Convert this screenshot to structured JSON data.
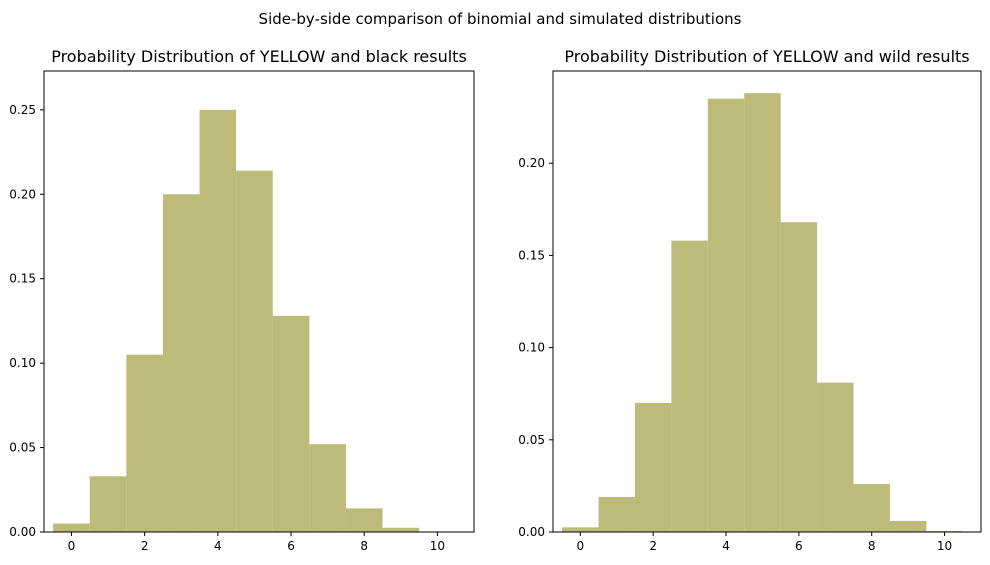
{
  "figure": {
    "suptitle": "Side-by-side comparison of binomial and simulated distributions"
  },
  "colors": {
    "bar": "#bcbb79",
    "axis": "#000000",
    "background": "#ffffff"
  },
  "chart_data": [
    {
      "type": "bar",
      "title": "Probability Distribution of YELLOW and black results",
      "xlabel": "",
      "ylabel": "",
      "xlim": [
        -0.75,
        11.0
      ],
      "ylim": [
        0,
        0.273
      ],
      "xticks": [
        0,
        2,
        4,
        6,
        8,
        10
      ],
      "yticks": [
        0.0,
        0.05,
        0.1,
        0.15,
        0.2,
        0.25
      ],
      "ytick_labels": [
        "0.00",
        "0.05",
        "0.10",
        "0.15",
        "0.20",
        "0.25"
      ],
      "categories": [
        0,
        1,
        2,
        3,
        4,
        5,
        6,
        7,
        8,
        9,
        10
      ],
      "values": [
        0.005,
        0.033,
        0.105,
        0.2,
        0.25,
        0.214,
        0.128,
        0.052,
        0.014,
        0.0025,
        0.0001
      ],
      "grid": false
    },
    {
      "type": "bar",
      "title": "Probability Distribution of YELLOW and wild results",
      "xlabel": "",
      "ylabel": "",
      "xlim": [
        -0.75,
        11.0
      ],
      "ylim": [
        0,
        0.25
      ],
      "xticks": [
        0,
        2,
        4,
        6,
        8,
        10
      ],
      "yticks": [
        0.0,
        0.05,
        0.1,
        0.15,
        0.2
      ],
      "ytick_labels": [
        "0.00",
        "0.05",
        "0.10",
        "0.15",
        "0.20"
      ],
      "categories": [
        0,
        1,
        2,
        3,
        4,
        5,
        6,
        7,
        8,
        9,
        10
      ],
      "values": [
        0.0025,
        0.019,
        0.07,
        0.158,
        0.235,
        0.238,
        0.168,
        0.081,
        0.026,
        0.006,
        0.0005
      ],
      "grid": false
    }
  ]
}
